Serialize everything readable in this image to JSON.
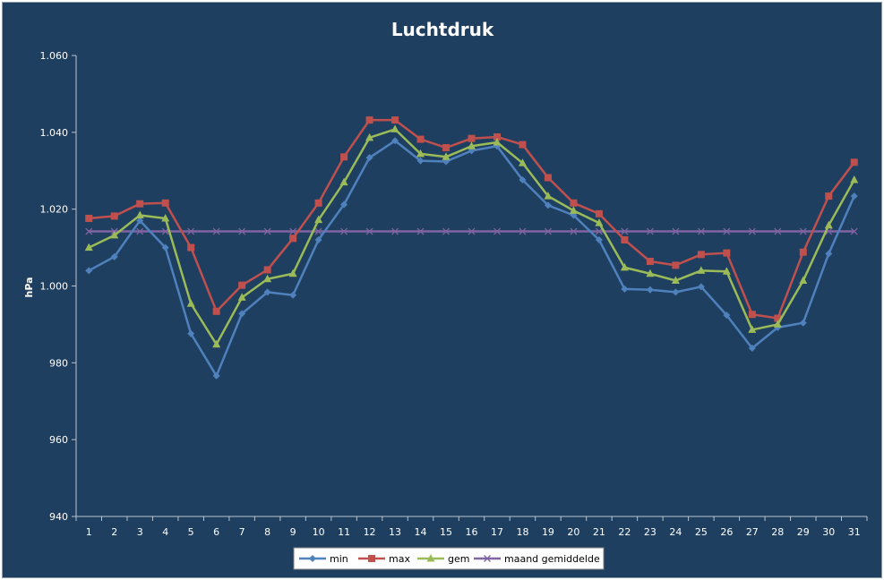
{
  "chart_data": {
    "type": "line",
    "title": "Luchtdruk",
    "xlabel": "",
    "ylabel": "hPa",
    "categories": [
      "1",
      "2",
      "3",
      "4",
      "5",
      "6",
      "7",
      "8",
      "9",
      "10",
      "11",
      "12",
      "13",
      "14",
      "15",
      "16",
      "17",
      "18",
      "19",
      "20",
      "21",
      "22",
      "23",
      "24",
      "25",
      "26",
      "27",
      "28",
      "29",
      "30",
      "31"
    ],
    "ylim": [
      940,
      1060
    ],
    "yticks": [
      940,
      960,
      980,
      1000,
      1020,
      1040,
      1060
    ],
    "ytick_labels": [
      "940",
      "960",
      "980",
      "1.000",
      "1.020",
      "1.040",
      "1.060"
    ],
    "legend_position": "bottom",
    "grid": false,
    "series": [
      {
        "name": "min",
        "color": "#4f81bd",
        "marker": "diamond",
        "values": [
          1004.0,
          1007.6,
          1017.0,
          1010.0,
          987.6,
          976.6,
          992.8,
          998.4,
          997.6,
          1012.0,
          1021.2,
          1033.4,
          1037.8,
          1032.6,
          1032.4,
          1035.2,
          1036.4,
          1027.6,
          1021.0,
          1018.4,
          1012.0,
          999.2,
          999.0,
          998.4,
          999.8,
          992.4,
          983.8,
          989.2,
          990.4,
          1008.4,
          1023.4
        ]
      },
      {
        "name": "max",
        "color": "#c0504d",
        "marker": "square",
        "values": [
          1017.6,
          1018.2,
          1021.4,
          1021.6,
          1010.0,
          993.4,
          1000.2,
          1004.2,
          1012.4,
          1021.6,
          1033.6,
          1043.2,
          1043.2,
          1038.2,
          1036.0,
          1038.4,
          1038.8,
          1036.8,
          1028.2,
          1021.6,
          1018.8,
          1012.0,
          1006.4,
          1005.4,
          1008.2,
          1008.6,
          992.6,
          991.6,
          1008.8,
          1023.4,
          1032.2
        ]
      },
      {
        "name": "gem",
        "color": "#9bbb59",
        "marker": "triangle",
        "values": [
          1010.0,
          1013.2,
          1018.4,
          1017.6,
          995.4,
          984.8,
          997.0,
          1001.8,
          1003.2,
          1017.2,
          1027.0,
          1038.6,
          1040.8,
          1034.4,
          1033.6,
          1036.4,
          1037.4,
          1032.0,
          1023.4,
          1019.6,
          1016.4,
          1004.8,
          1003.2,
          1001.4,
          1004.0,
          1003.8,
          988.6,
          990.0,
          1001.4,
          1015.8,
          1027.6
        ]
      },
      {
        "name": "maand gemiddelde",
        "color": "#8064a2",
        "marker": "x",
        "values": [
          1014.2,
          1014.2,
          1014.2,
          1014.2,
          1014.2,
          1014.2,
          1014.2,
          1014.2,
          1014.2,
          1014.2,
          1014.2,
          1014.2,
          1014.2,
          1014.2,
          1014.2,
          1014.2,
          1014.2,
          1014.2,
          1014.2,
          1014.2,
          1014.2,
          1014.2,
          1014.2,
          1014.2,
          1014.2,
          1014.2,
          1014.2,
          1014.2,
          1014.2,
          1014.2,
          1014.2
        ]
      }
    ]
  }
}
